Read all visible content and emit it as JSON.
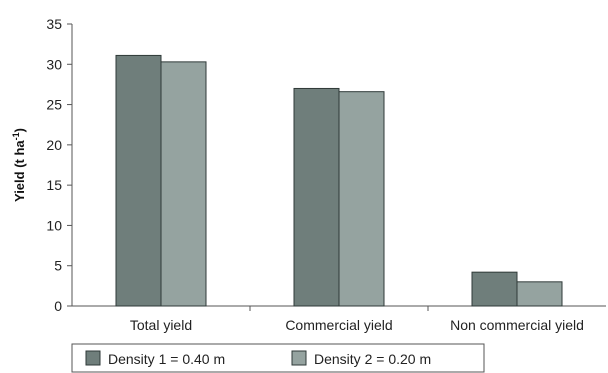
{
  "chart_data": {
    "type": "bar",
    "ylabel": "Yield (t ha",
    "ylabel_sup": "-1",
    "ylabel_close": ")",
    "ylim": [
      0,
      35
    ],
    "yticks": [
      0,
      5,
      10,
      15,
      20,
      25,
      30,
      35
    ],
    "grid": false,
    "legend_position": "bottom-left",
    "categories": [
      "Total yield",
      "Commercial yield",
      "Non commercial yield"
    ],
    "series": [
      {
        "name": "Density 1 = 0.40 m",
        "color": "#6f7e7b",
        "values": [
          31.1,
          27.0,
          4.2
        ]
      },
      {
        "name": "Density 2 = 0.20 m",
        "color": "#95a3a0",
        "values": [
          30.3,
          26.6,
          3.0
        ]
      }
    ]
  }
}
